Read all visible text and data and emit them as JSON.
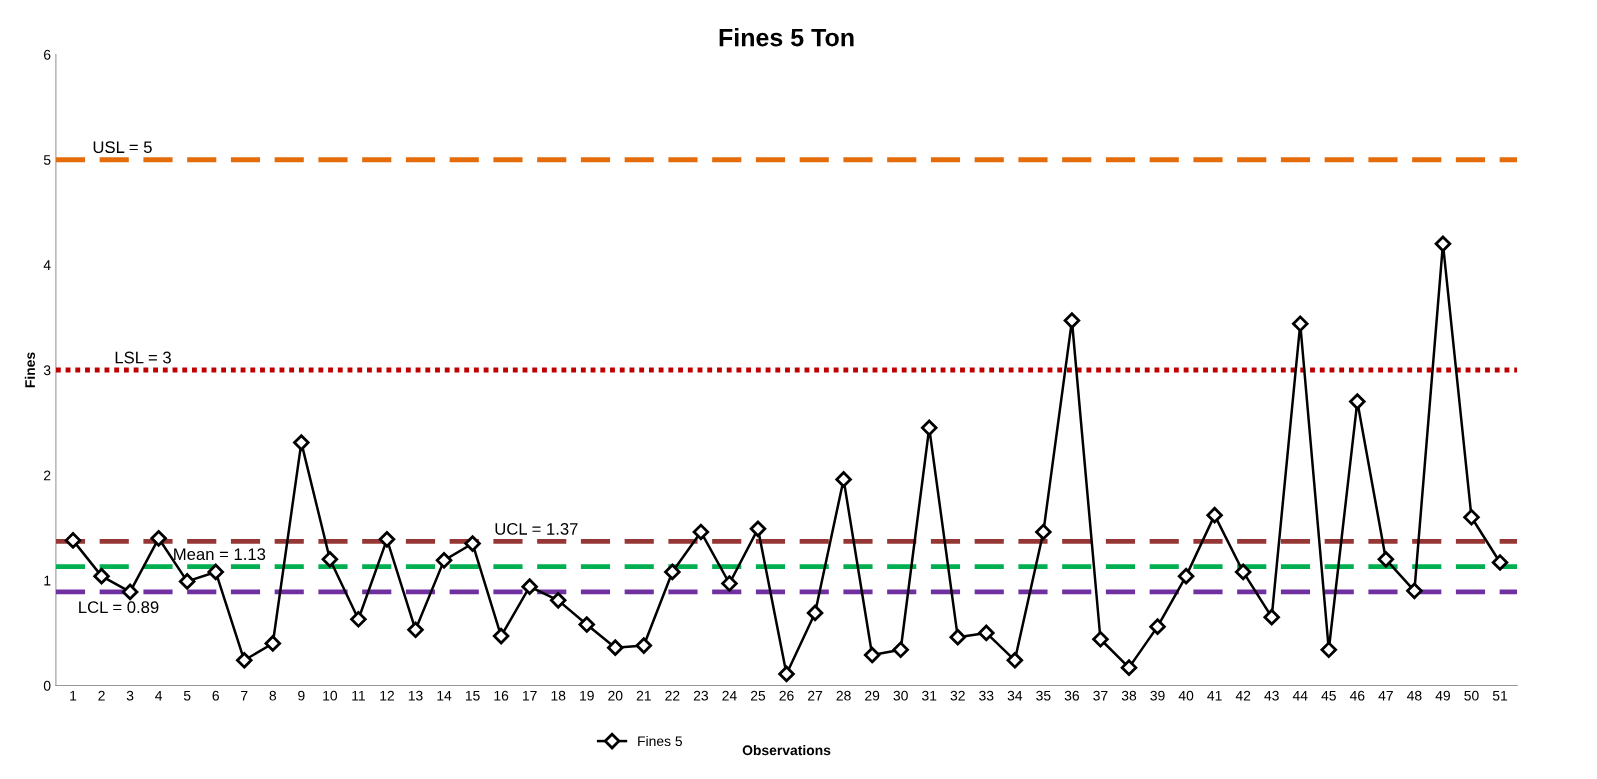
{
  "chart_data": {
    "type": "line",
    "title": "Fines 5 Ton",
    "xlabel": "Observations",
    "ylabel": "Fines",
    "categories": [
      "1",
      "2",
      "3",
      "4",
      "5",
      "6",
      "7",
      "8",
      "9",
      "10",
      "11",
      "12",
      "13",
      "14",
      "15",
      "16",
      "17",
      "18",
      "19",
      "20",
      "21",
      "22",
      "23",
      "24",
      "25",
      "26",
      "27",
      "28",
      "29",
      "30",
      "31",
      "32",
      "33",
      "34",
      "35",
      "36",
      "37",
      "38",
      "39",
      "40",
      "41",
      "42",
      "43",
      "44",
      "45",
      "46",
      "47",
      "48",
      "49",
      "50",
      "51"
    ],
    "series": [
      {
        "name": "Fines 5",
        "color": "#000000",
        "values": [
          1.38,
          1.04,
          0.89,
          1.4,
          0.99,
          1.08,
          0.24,
          0.4,
          2.31,
          1.2,
          0.63,
          1.39,
          0.53,
          1.19,
          1.35,
          0.47,
          0.94,
          0.81,
          0.58,
          0.36,
          0.38,
          1.08,
          1.46,
          0.97,
          1.49,
          0.11,
          0.69,
          1.96,
          0.29,
          0.34,
          2.45,
          0.46,
          0.5,
          0.24,
          1.46,
          3.47,
          0.44,
          0.17,
          0.56,
          1.04,
          1.62,
          1.08,
          0.65,
          3.44,
          0.34,
          2.7,
          1.2,
          0.9,
          4.2,
          1.6,
          1.17
        ]
      }
    ],
    "ylim": [
      0,
      6
    ],
    "yticks": [
      0,
      1,
      2,
      3,
      4,
      5,
      6
    ],
    "grid": false,
    "legend": "bottom",
    "marker": "diamond",
    "line_style": "solid",
    "ref_lines": [
      {
        "axis": "y",
        "value": 5,
        "label": "USL = 5",
        "color": "#e46c0a",
        "line_style": "dashed"
      },
      {
        "axis": "y",
        "value": 3,
        "label": "LSL = 3",
        "color": "#c00000",
        "line_style": "dotted"
      },
      {
        "axis": "y",
        "value": 1.37,
        "label": "UCL = 1.37",
        "color": "#953735",
        "line_style": "dashed"
      },
      {
        "axis": "y",
        "value": 1.13,
        "label": "Mean = 1.13",
        "color": "#00b050",
        "line_style": "dashed"
      },
      {
        "axis": "y",
        "value": 0.89,
        "label": "LCL = 0.89",
        "color": "#7030a0",
        "line_style": "dashed"
      }
    ]
  }
}
